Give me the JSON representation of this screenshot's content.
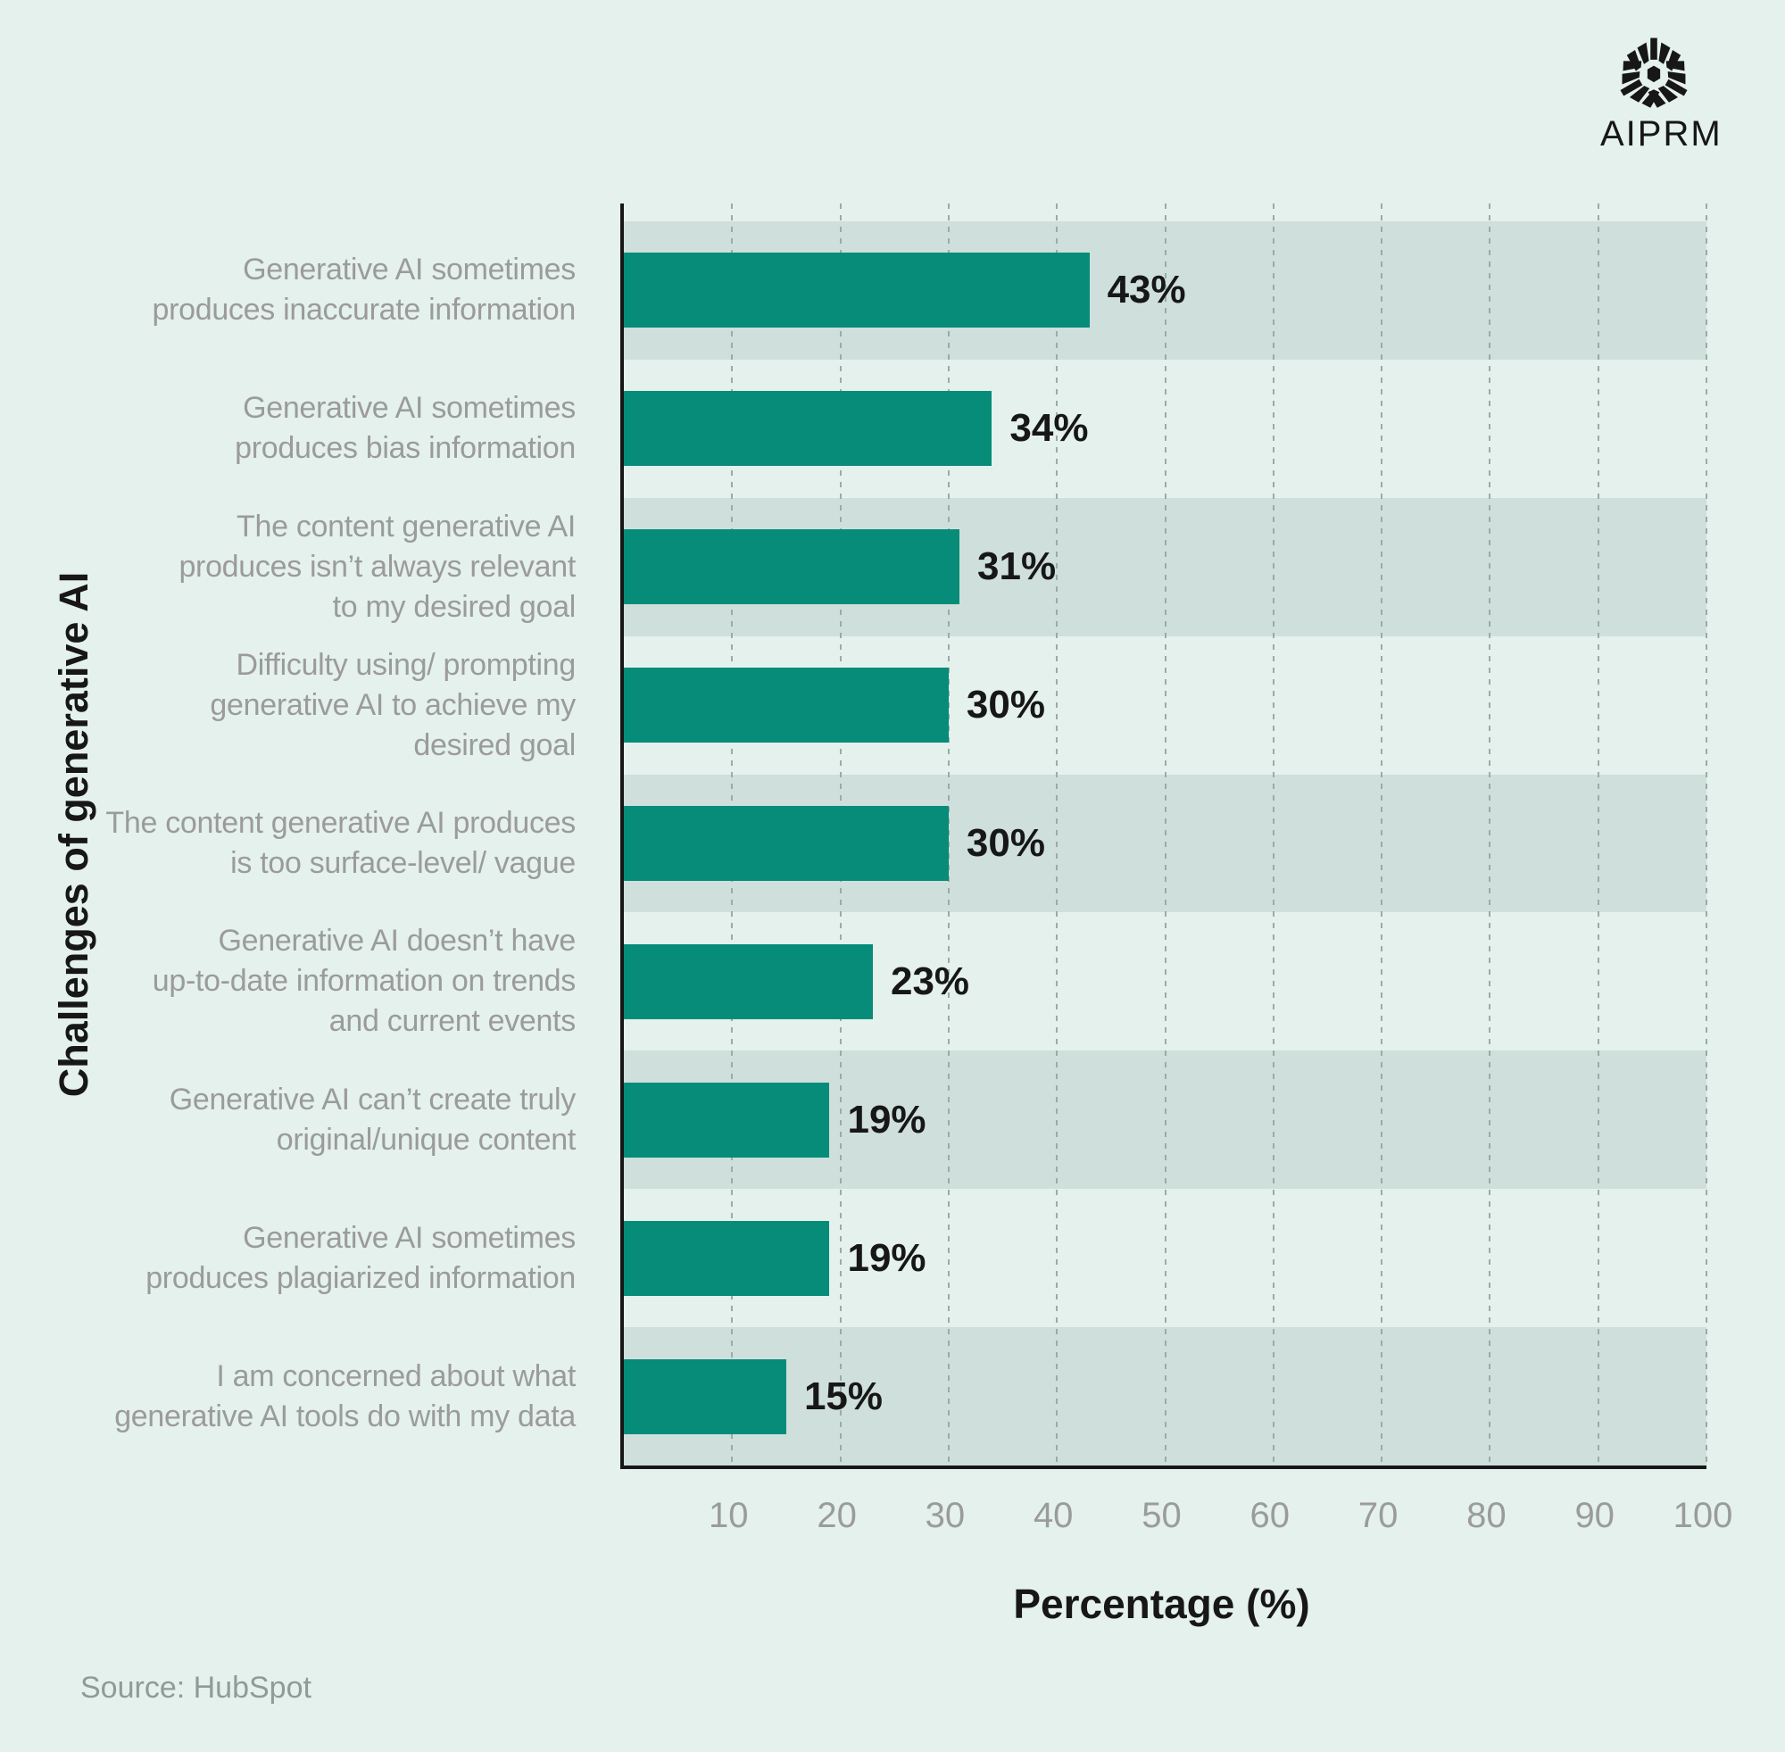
{
  "logo": {
    "text": "AIPRM",
    "icon": "aiprm-hexagon-mark",
    "color": "#171717"
  },
  "source": {
    "label": "Source: HubSpot"
  },
  "chart_data": {
    "type": "bar",
    "orientation": "horizontal",
    "title": "",
    "xlabel": "Percentage (%)",
    "ylabel": "Challenges of generative AI",
    "xlim": [
      0,
      100
    ],
    "xticks": [
      10,
      20,
      30,
      40,
      50,
      60,
      70,
      80,
      90,
      100
    ],
    "grid": "vertical-dashed",
    "legend": "none",
    "categories": [
      "Generative AI sometimes produces inaccurate information",
      "Generative AI sometimes produces bias information",
      "The content generative AI produces isn’t always relevant to my desired goal",
      "Difficulty using/ prompting generative AI to achieve my desired goal",
      "The content generative AI produces is too surface-level/ vague",
      "Generative AI doesn’t have up-to-date information on trends and current events",
      "Generative AI can’t create truly original/unique content",
      "Generative AI sometimes produces plagiarized information",
      "I am concerned about what generative AI tools do with my data"
    ],
    "category_lines": [
      [
        "Generative AI sometimes",
        "produces inaccurate information"
      ],
      [
        "Generative AI sometimes",
        "produces bias information"
      ],
      [
        "The content generative AI",
        "produces isn’t always relevant",
        "to my desired goal"
      ],
      [
        "Difficulty using/ prompting",
        "generative AI to achieve my",
        "desired goal"
      ],
      [
        "The content generative AI produces",
        "is too surface-level/ vague"
      ],
      [
        "Generative AI doesn’t have",
        "up-to-date information on trends",
        "and current events"
      ],
      [
        "Generative AI can’t create truly",
        "original/unique content"
      ],
      [
        "Generative AI sometimes",
        "produces plagiarized information"
      ],
      [
        "I am concerned about what",
        "generative AI tools do with my data"
      ]
    ],
    "values": [
      43,
      34,
      31,
      30,
      30,
      23,
      19,
      19,
      15
    ],
    "value_labels": [
      "43%",
      "34%",
      "31%",
      "30%",
      "30%",
      "23%",
      "19%",
      "19%",
      "15%"
    ],
    "striped_rows": [
      0,
      2,
      4,
      6,
      8
    ],
    "colors": {
      "background": "#e4f1ed",
      "row_stripe": "#cfdfdb",
      "bar": "#068c78",
      "gridline": "#9aaca8",
      "axis": "#171717",
      "category_text": "#9b9b9b",
      "tick_text": "#9b9b9b",
      "value_text": "#171717",
      "source_text": "#8e9c98"
    }
  }
}
